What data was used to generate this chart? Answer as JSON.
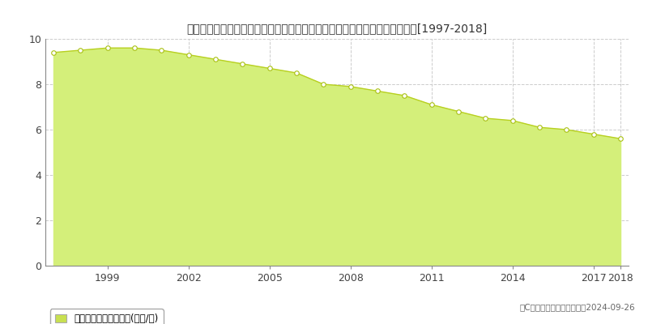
{
  "title": "長崎県東彼杞郡東彼杞町彼杞宿郷字年ノ宮５２３番３　基準地価　地価推移[1997-2018]",
  "years": [
    1997,
    1998,
    1999,
    2000,
    2001,
    2002,
    2003,
    2004,
    2005,
    2006,
    2007,
    2008,
    2009,
    2010,
    2011,
    2012,
    2013,
    2014,
    2015,
    2016,
    2017,
    2018
  ],
  "values": [
    9.4,
    9.5,
    9.6,
    9.6,
    9.5,
    9.3,
    9.1,
    8.9,
    8.7,
    8.5,
    8.0,
    7.9,
    7.7,
    7.5,
    7.1,
    6.8,
    6.5,
    6.4,
    6.1,
    6.0,
    5.8,
    5.6
  ],
  "fill_color": "#d4ef7a",
  "line_color": "#b8d020",
  "marker_facecolor": "#ffffff",
  "marker_edgecolor": "#a8c010",
  "grid_color": "#cccccc",
  "bg_color": "#ffffff",
  "plot_bg_color": "#ffffff",
  "legend_label": "基準地価　平均坤単価(万円/坤)",
  "legend_color": "#c8e050",
  "copyright_text": "（C）土地価格ドットコム　2024-09-26",
  "ylim": [
    0,
    10
  ],
  "yticks": [
    0,
    2,
    4,
    6,
    8,
    10
  ],
  "xlim_start": 1997,
  "xlim_end": 2018
}
